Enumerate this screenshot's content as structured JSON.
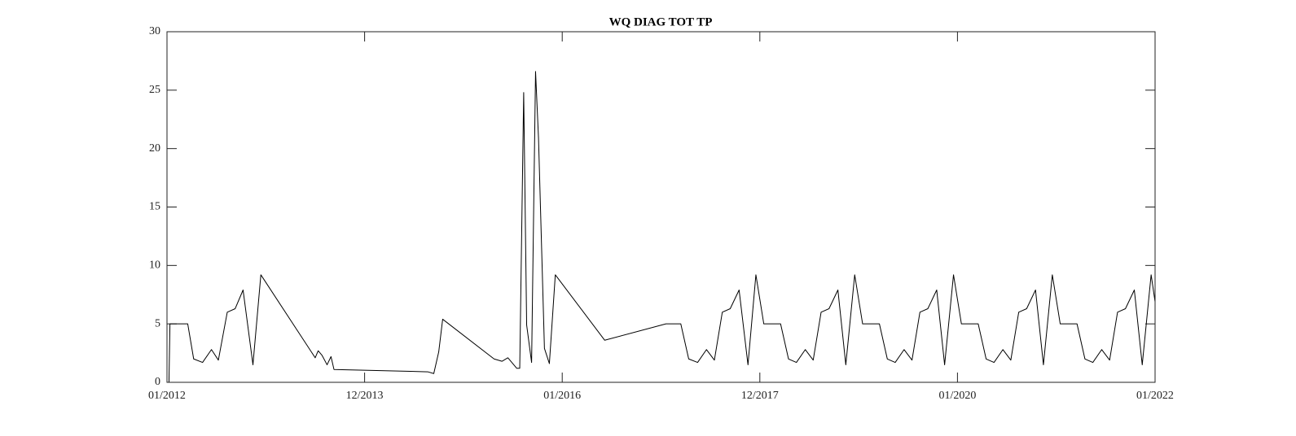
{
  "chart_data": {
    "type": "line",
    "title": "WQ DIAG TOT TP",
    "x": [
      2012.02,
      2012.03,
      2012.21,
      2012.27,
      2012.36,
      2012.45,
      2012.52,
      2012.61,
      2012.69,
      2012.77,
      2012.87,
      2012.95,
      2013.5,
      2013.53,
      2013.57,
      2013.62,
      2013.66,
      2013.69,
      2014.64,
      2014.7,
      2014.75,
      2014.79,
      2015.31,
      2015.39,
      2015.45,
      2015.54,
      2015.57,
      2015.61,
      2015.64,
      2015.69,
      2015.73,
      2015.76,
      2015.82,
      2015.87,
      2015.93,
      2016.43,
      2017.05,
      2017.2,
      2017.28,
      2017.37,
      2017.46,
      2017.54,
      2017.62,
      2017.7,
      2017.79,
      2017.88,
      2017.96,
      2018.04,
      2018.21,
      2018.29,
      2018.37,
      2018.46,
      2018.54,
      2018.62,
      2018.7,
      2018.79,
      2018.87,
      2018.96,
      2019.04,
      2019.21,
      2019.29,
      2019.37,
      2019.46,
      2019.54,
      2019.62,
      2019.7,
      2019.79,
      2019.87,
      2019.96,
      2020.04,
      2020.21,
      2020.29,
      2020.37,
      2020.46,
      2020.54,
      2020.62,
      2020.7,
      2020.79,
      2020.87,
      2020.96,
      2021.04,
      2021.21,
      2021.29,
      2021.37,
      2021.46,
      2021.54,
      2021.62,
      2021.7,
      2021.79,
      2021.87,
      2021.96,
      2022.0
    ],
    "values": [
      0,
      5,
      5,
      2,
      1.7,
      2.8,
      1.9,
      6,
      6.3,
      7.9,
      1.5,
      9.2,
      2.1,
      2.7,
      2.3,
      1.5,
      2.2,
      1.1,
      0.9,
      0.75,
      2.6,
      5.4,
      2,
      1.8,
      2.1,
      1.2,
      1.2,
      24.8,
      4.9,
      1.7,
      26.6,
      20.9,
      2.9,
      1.6,
      9.2,
      3.6,
      5,
      5,
      2,
      1.7,
      2.8,
      1.9,
      6,
      6.3,
      7.9,
      1.5,
      9.2,
      5,
      5,
      2,
      1.7,
      2.8,
      1.9,
      6,
      6.3,
      7.9,
      1.5,
      9.2,
      5,
      5,
      2,
      1.7,
      2.8,
      1.9,
      6,
      6.3,
      7.9,
      1.5,
      9.2,
      5,
      5,
      2,
      1.7,
      2.8,
      1.9,
      6,
      6.3,
      7.9,
      1.5,
      9.2,
      5,
      5,
      2,
      1.7,
      2.8,
      1.9,
      6,
      6.3,
      7.9,
      1.5,
      9.2,
      6.9
    ],
    "color": "#000000",
    "xlim": [
      2012,
      2022
    ],
    "xticks": [
      {
        "value": 2012,
        "label": "01/2012"
      },
      {
        "value": 2014,
        "label": "12/2013"
      },
      {
        "value": 2016,
        "label": "01/2016"
      },
      {
        "value": 2018,
        "label": "12/2017"
      },
      {
        "value": 2020,
        "label": "01/2020"
      },
      {
        "value": 2022,
        "label": "01/2022"
      }
    ],
    "ylim": [
      0,
      30
    ],
    "yticks": [
      0,
      5,
      10,
      15,
      20,
      25,
      30
    ],
    "grid": false
  }
}
